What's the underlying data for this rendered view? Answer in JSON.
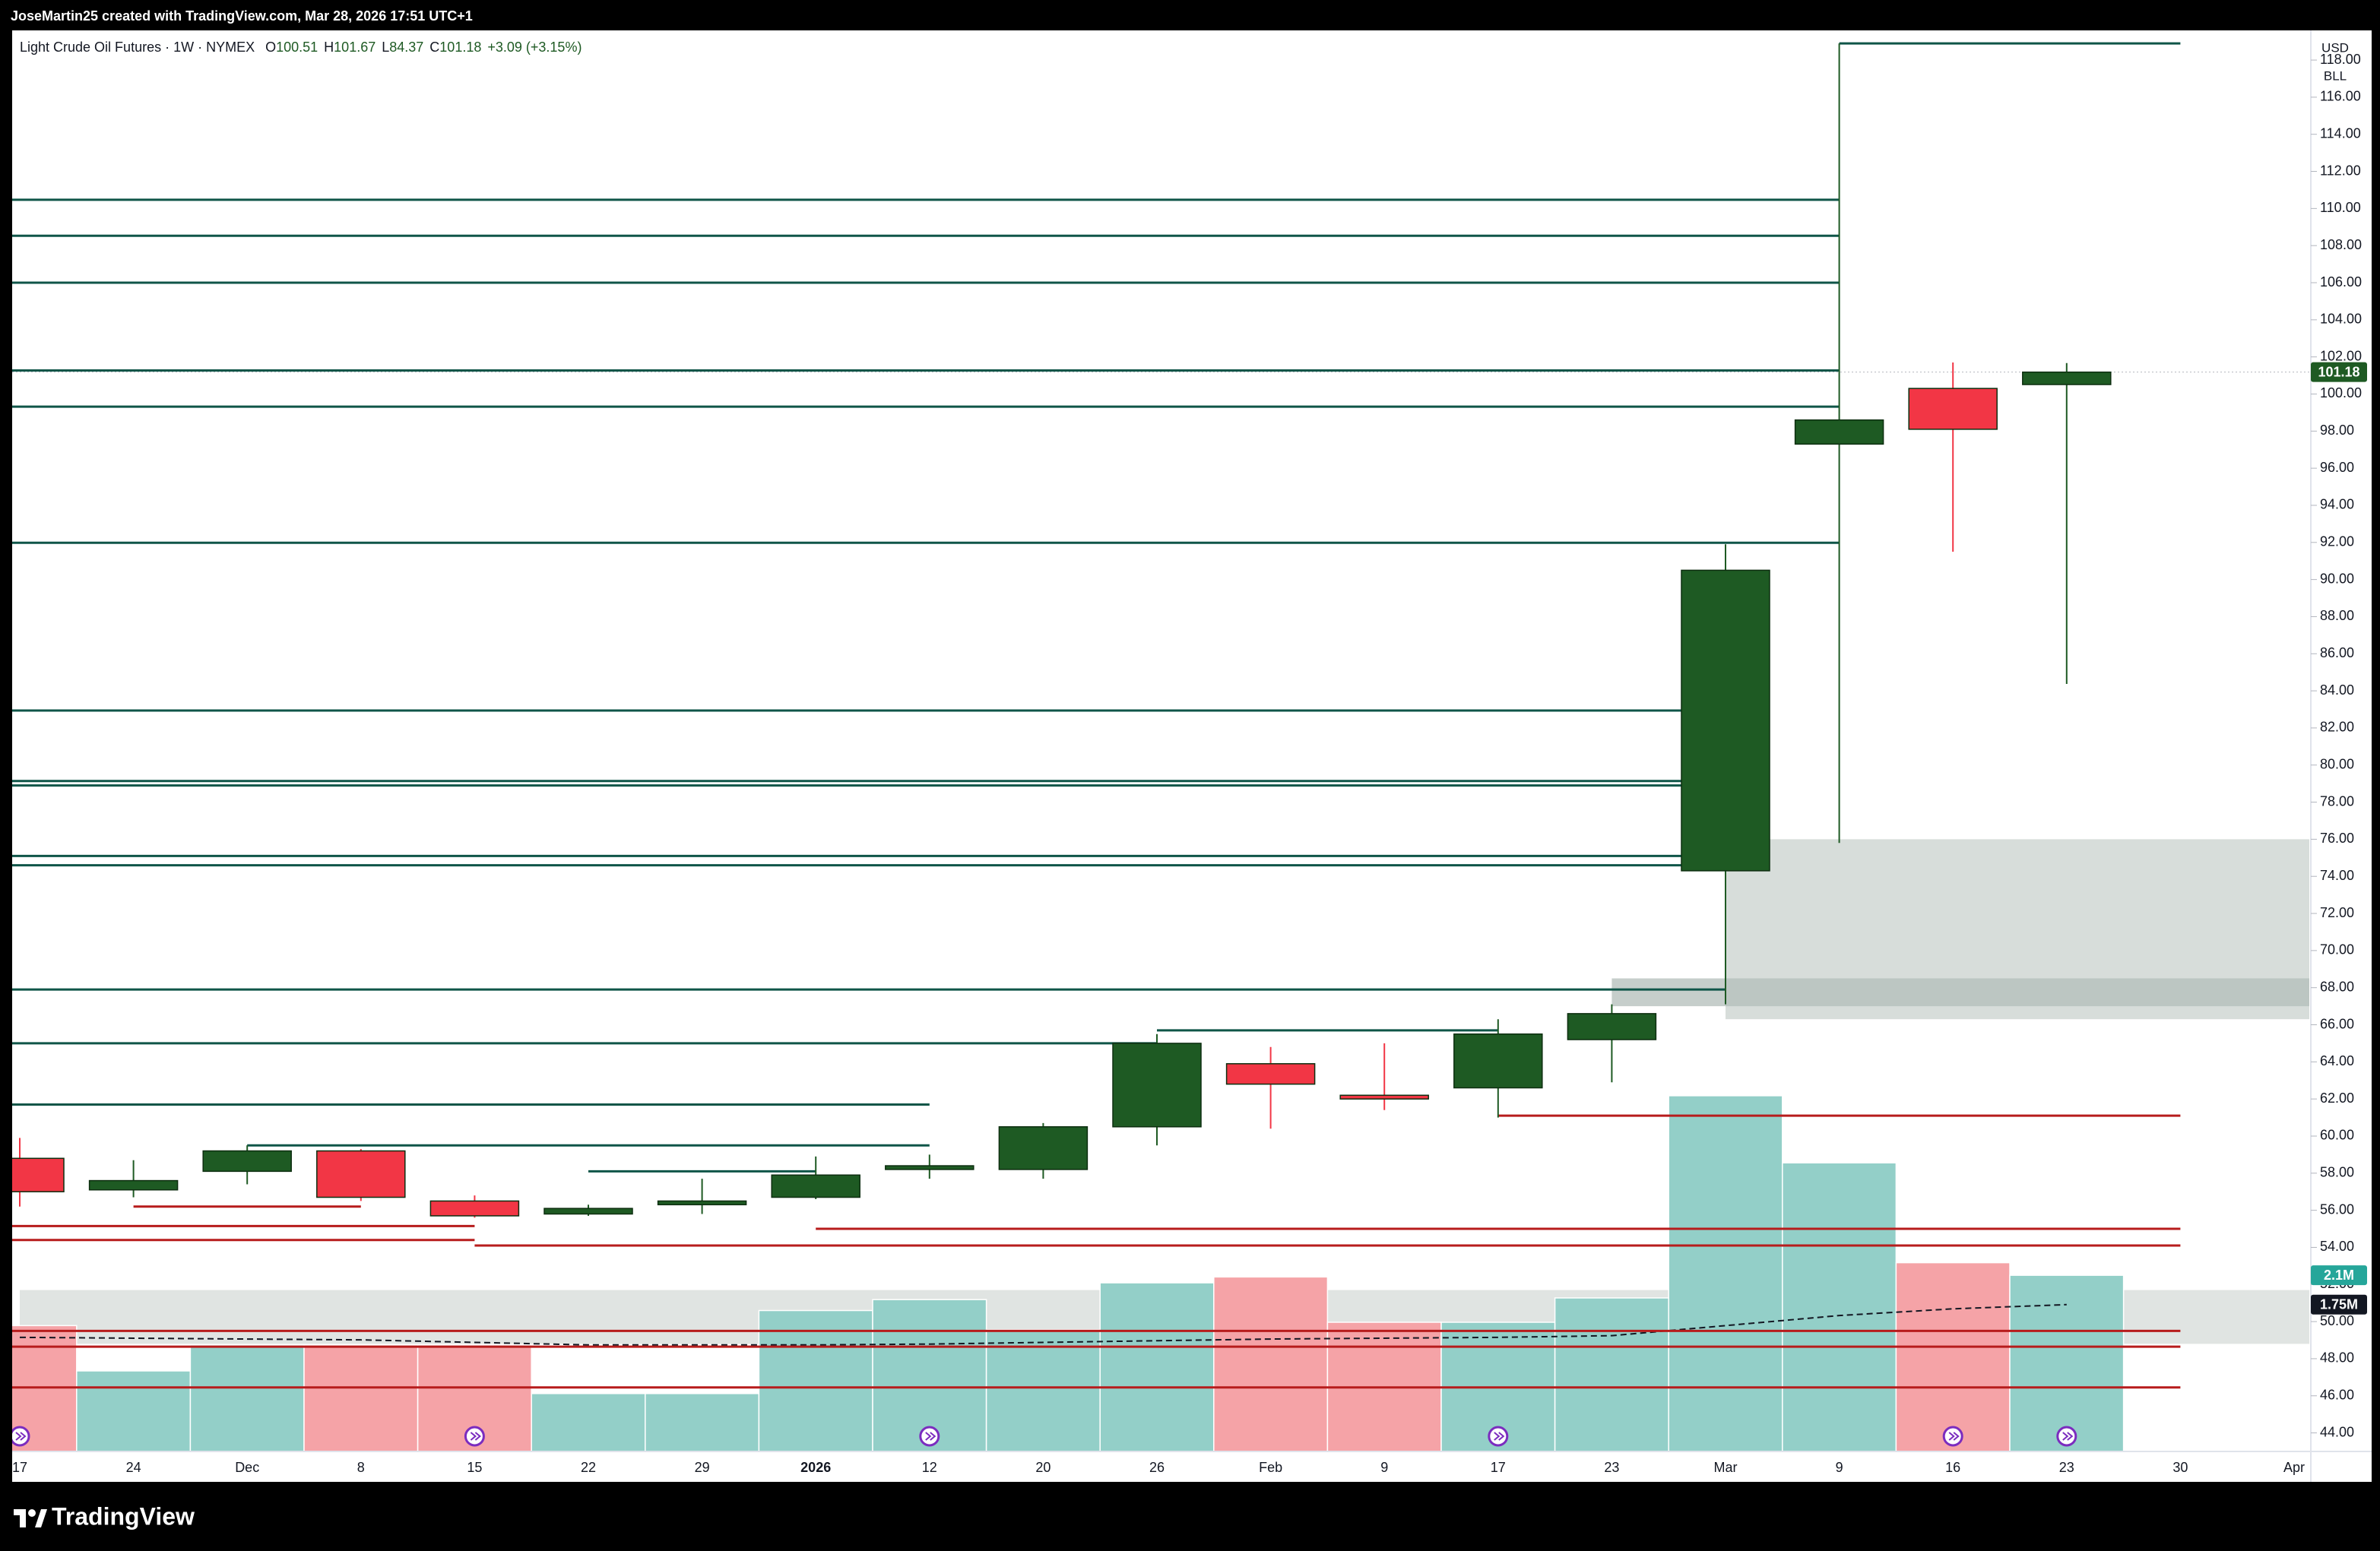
{
  "credit": "JoseMartin25 created with TradingView.com, Mar 28, 2026 17:51 UTC+1",
  "brand": "TradingView",
  "chart_data": {
    "type": "candlestick",
    "title": "Light Crude Oil Futures · 1W · NYMEX",
    "ohlc_prefixes": [
      "O",
      "H",
      "L",
      "C"
    ],
    "change": "+3.09 (+3.15%)",
    "currency": "USD",
    "unit": "BLL",
    "categories": [
      "17",
      "24",
      "Dec",
      "8",
      "15",
      "22",
      "29",
      "2026",
      "12",
      "20",
      "26",
      "Feb",
      "9",
      "17",
      "23",
      "Mar",
      "9",
      "16",
      "23",
      "30",
      "Apr"
    ],
    "candles": {
      "open": [
        58.8,
        57.1,
        58.1,
        59.2,
        56.5,
        55.8,
        56.3,
        56.7,
        58.2,
        58.2,
        60.5,
        63.9,
        62.2,
        62.6,
        65.2,
        74.3,
        97.3,
        100.3,
        100.51,
        null,
        null
      ],
      "high": [
        59.9,
        58.7,
        59.5,
        59.3,
        56.8,
        56.3,
        57.7,
        58.9,
        59.0,
        60.7,
        65.5,
        64.8,
        65.0,
        66.3,
        67.1,
        91.9,
        118.9,
        101.7,
        101.67,
        null,
        null
      ],
      "low": [
        56.2,
        56.7,
        57.4,
        56.5,
        55.6,
        55.7,
        55.8,
        56.6,
        57.7,
        57.7,
        59.5,
        60.4,
        61.4,
        61.0,
        62.9,
        67.1,
        75.8,
        91.5,
        84.37,
        null,
        null
      ],
      "close": [
        57.0,
        57.6,
        59.2,
        56.7,
        55.7,
        56.1,
        56.5,
        57.9,
        58.4,
        60.5,
        65.0,
        62.8,
        62.0,
        65.5,
        66.6,
        90.5,
        98.6,
        98.1,
        101.18,
        null,
        null
      ]
    },
    "up_color": "#1e5a23",
    "down_color": "#f23645",
    "volume": {
      "values": [
        1500000,
        960000,
        1270000,
        1270000,
        1270000,
        690000,
        690000,
        1680000,
        1810000,
        1450000,
        2010000,
        2080000,
        1540000,
        1540000,
        1830000,
        4240000,
        3440000,
        2250000,
        2100000,
        null,
        null
      ],
      "value_labels": [
        null,
        null,
        null,
        null,
        null,
        null,
        null,
        null,
        null,
        null,
        null,
        null,
        null,
        null,
        null,
        null,
        null,
        null,
        "2.1M",
        null,
        null
      ],
      "up_color": "#93cfc8",
      "down_color": "#f5a3a7"
    },
    "volume_ma": {
      "values": [
        1360000,
        1350000,
        1340000,
        1330000,
        1300000,
        1270000,
        1270000,
        1270000,
        1280000,
        1300000,
        1320000,
        1340000,
        1350000,
        1360000,
        1380000,
        1500000,
        1620000,
        1700000,
        1750000,
        null,
        null
      ],
      "value_labels": [
        null,
        null,
        null,
        null,
        null,
        null,
        null,
        null,
        null,
        null,
        null,
        null,
        null,
        null,
        null,
        null,
        null,
        null,
        "1.75M",
        null,
        null
      ]
    },
    "levels": [
      {
        "value": 110.47,
        "from": 0,
        "to": 16,
        "color": "#0f5548"
      },
      {
        "value": 108.53,
        "from": 0,
        "to": 16,
        "color": "#0f5548"
      },
      {
        "value": 106.0,
        "from": 0,
        "to": 16,
        "color": "#0f5548"
      },
      {
        "value": 101.27,
        "from": 0,
        "to": 16,
        "color": "#0f5548"
      },
      {
        "value": 99.32,
        "from": 0,
        "to": 16,
        "color": "#0f5548"
      },
      {
        "value": 91.98,
        "from": 0,
        "to": 16,
        "color": "#0f5548"
      },
      {
        "value": 82.94,
        "from": 0,
        "to": 15,
        "color": "#0f5548"
      },
      {
        "value": 79.14,
        "from": 0,
        "to": 15,
        "color": "#0f5548"
      },
      {
        "value": 78.9,
        "from": 0,
        "to": 15,
        "color": "#0f5548"
      },
      {
        "value": 75.1,
        "from": 0,
        "to": 15,
        "color": "#0f5548"
      },
      {
        "value": 74.6,
        "from": 0,
        "to": 15,
        "color": "#0f5548"
      },
      {
        "value": 67.9,
        "from": 0,
        "to": 15,
        "color": "#0f5548"
      },
      {
        "value": 65.0,
        "from": 0,
        "to": 10,
        "color": "#0f5548"
      },
      {
        "value": 65.7,
        "from": 10,
        "to": 13,
        "color": "#0f5548"
      },
      {
        "value": 61.7,
        "from": 0,
        "to": 8,
        "color": "#0f5548"
      },
      {
        "value": 59.5,
        "from": 2,
        "to": 8,
        "color": "#0f5548"
      },
      {
        "value": 58.1,
        "from": 5,
        "to": 7,
        "color": "#0f5548"
      },
      {
        "value": 118.9,
        "from": 16,
        "to": 19,
        "color": "#0f5548"
      },
      {
        "value": 61.1,
        "from": 13,
        "to": 19,
        "color": "#b71c1c"
      },
      {
        "value": 55.0,
        "from": 7,
        "to": 19,
        "color": "#b71c1c"
      },
      {
        "value": 55.15,
        "from": 0,
        "to": 4,
        "color": "#b71c1c"
      },
      {
        "value": 54.4,
        "from": 0,
        "to": 4,
        "color": "#b71c1c"
      },
      {
        "value": 54.1,
        "from": 4,
        "to": 19,
        "color": "#b71c1c"
      },
      {
        "value": 56.2,
        "from": 1,
        "to": 3,
        "color": "#b71c1c"
      },
      {
        "value": 49.5,
        "from": 0,
        "to": 19,
        "color": "#b71c1c"
      },
      {
        "value": 48.65,
        "from": 0,
        "to": 19,
        "color": "#b71c1c"
      },
      {
        "value": 46.45,
        "from": 0,
        "to": 19,
        "color": "#b71c1c"
      }
    ],
    "zones": [
      {
        "range": [
          66.3,
          76.0
        ],
        "from": 15,
        "to": 20,
        "color": "#c9d2ce"
      },
      {
        "range": [
          67.0,
          68.5
        ],
        "from": 14,
        "to": 20,
        "color": "#b3bdb9"
      },
      {
        "range": [
          48.8,
          51.7
        ],
        "from": 0,
        "to": 20,
        "color": "#d5dbd8"
      }
    ],
    "ylim": [
      43,
      119.6
    ],
    "yticks": [
      {
        "value": 44,
        "label": "44.00"
      },
      {
        "value": 46,
        "label": "46.00"
      },
      {
        "value": 48,
        "label": "48.00"
      },
      {
        "value": 50,
        "label": "50.00"
      },
      {
        "value": 52,
        "label": "52.00"
      },
      {
        "value": 54,
        "label": "54.00"
      },
      {
        "value": 56,
        "label": "56.00"
      },
      {
        "value": 58,
        "label": "58.00"
      },
      {
        "value": 60,
        "label": "60.00"
      },
      {
        "value": 62,
        "label": "62.00"
      },
      {
        "value": 64,
        "label": "64.00"
      },
      {
        "value": 66,
        "label": "66.00"
      },
      {
        "value": 68,
        "label": "68.00"
      },
      {
        "value": 70,
        "label": "70.00"
      },
      {
        "value": 72,
        "label": "72.00"
      },
      {
        "value": 74,
        "label": "74.00"
      },
      {
        "value": 76,
        "label": "76.00"
      },
      {
        "value": 78,
        "label": "78.00"
      },
      {
        "value": 80,
        "label": "80.00"
      },
      {
        "value": 82,
        "label": "82.00"
      },
      {
        "value": 84,
        "label": "84.00"
      },
      {
        "value": 86,
        "label": "86.00"
      },
      {
        "value": 88,
        "label": "88.00"
      },
      {
        "value": 90,
        "label": "90.00"
      },
      {
        "value": 92,
        "label": "92.00"
      },
      {
        "value": 94,
        "label": "94.00"
      },
      {
        "value": 96,
        "label": "96.00"
      },
      {
        "value": 98,
        "label": "98.00"
      },
      {
        "value": 100,
        "label": "100.00"
      },
      {
        "value": 102,
        "label": "102.00"
      },
      {
        "value": 104,
        "label": "104.00"
      },
      {
        "value": 106,
        "label": "106.00"
      },
      {
        "value": 108,
        "label": "108.00"
      },
      {
        "value": 110,
        "label": "110.00"
      },
      {
        "value": 112,
        "label": "112.00"
      },
      {
        "value": 114,
        "label": "114.00"
      },
      {
        "value": 116,
        "label": "116.00"
      },
      {
        "value": 118,
        "label": "118.00"
      }
    ]
  }
}
